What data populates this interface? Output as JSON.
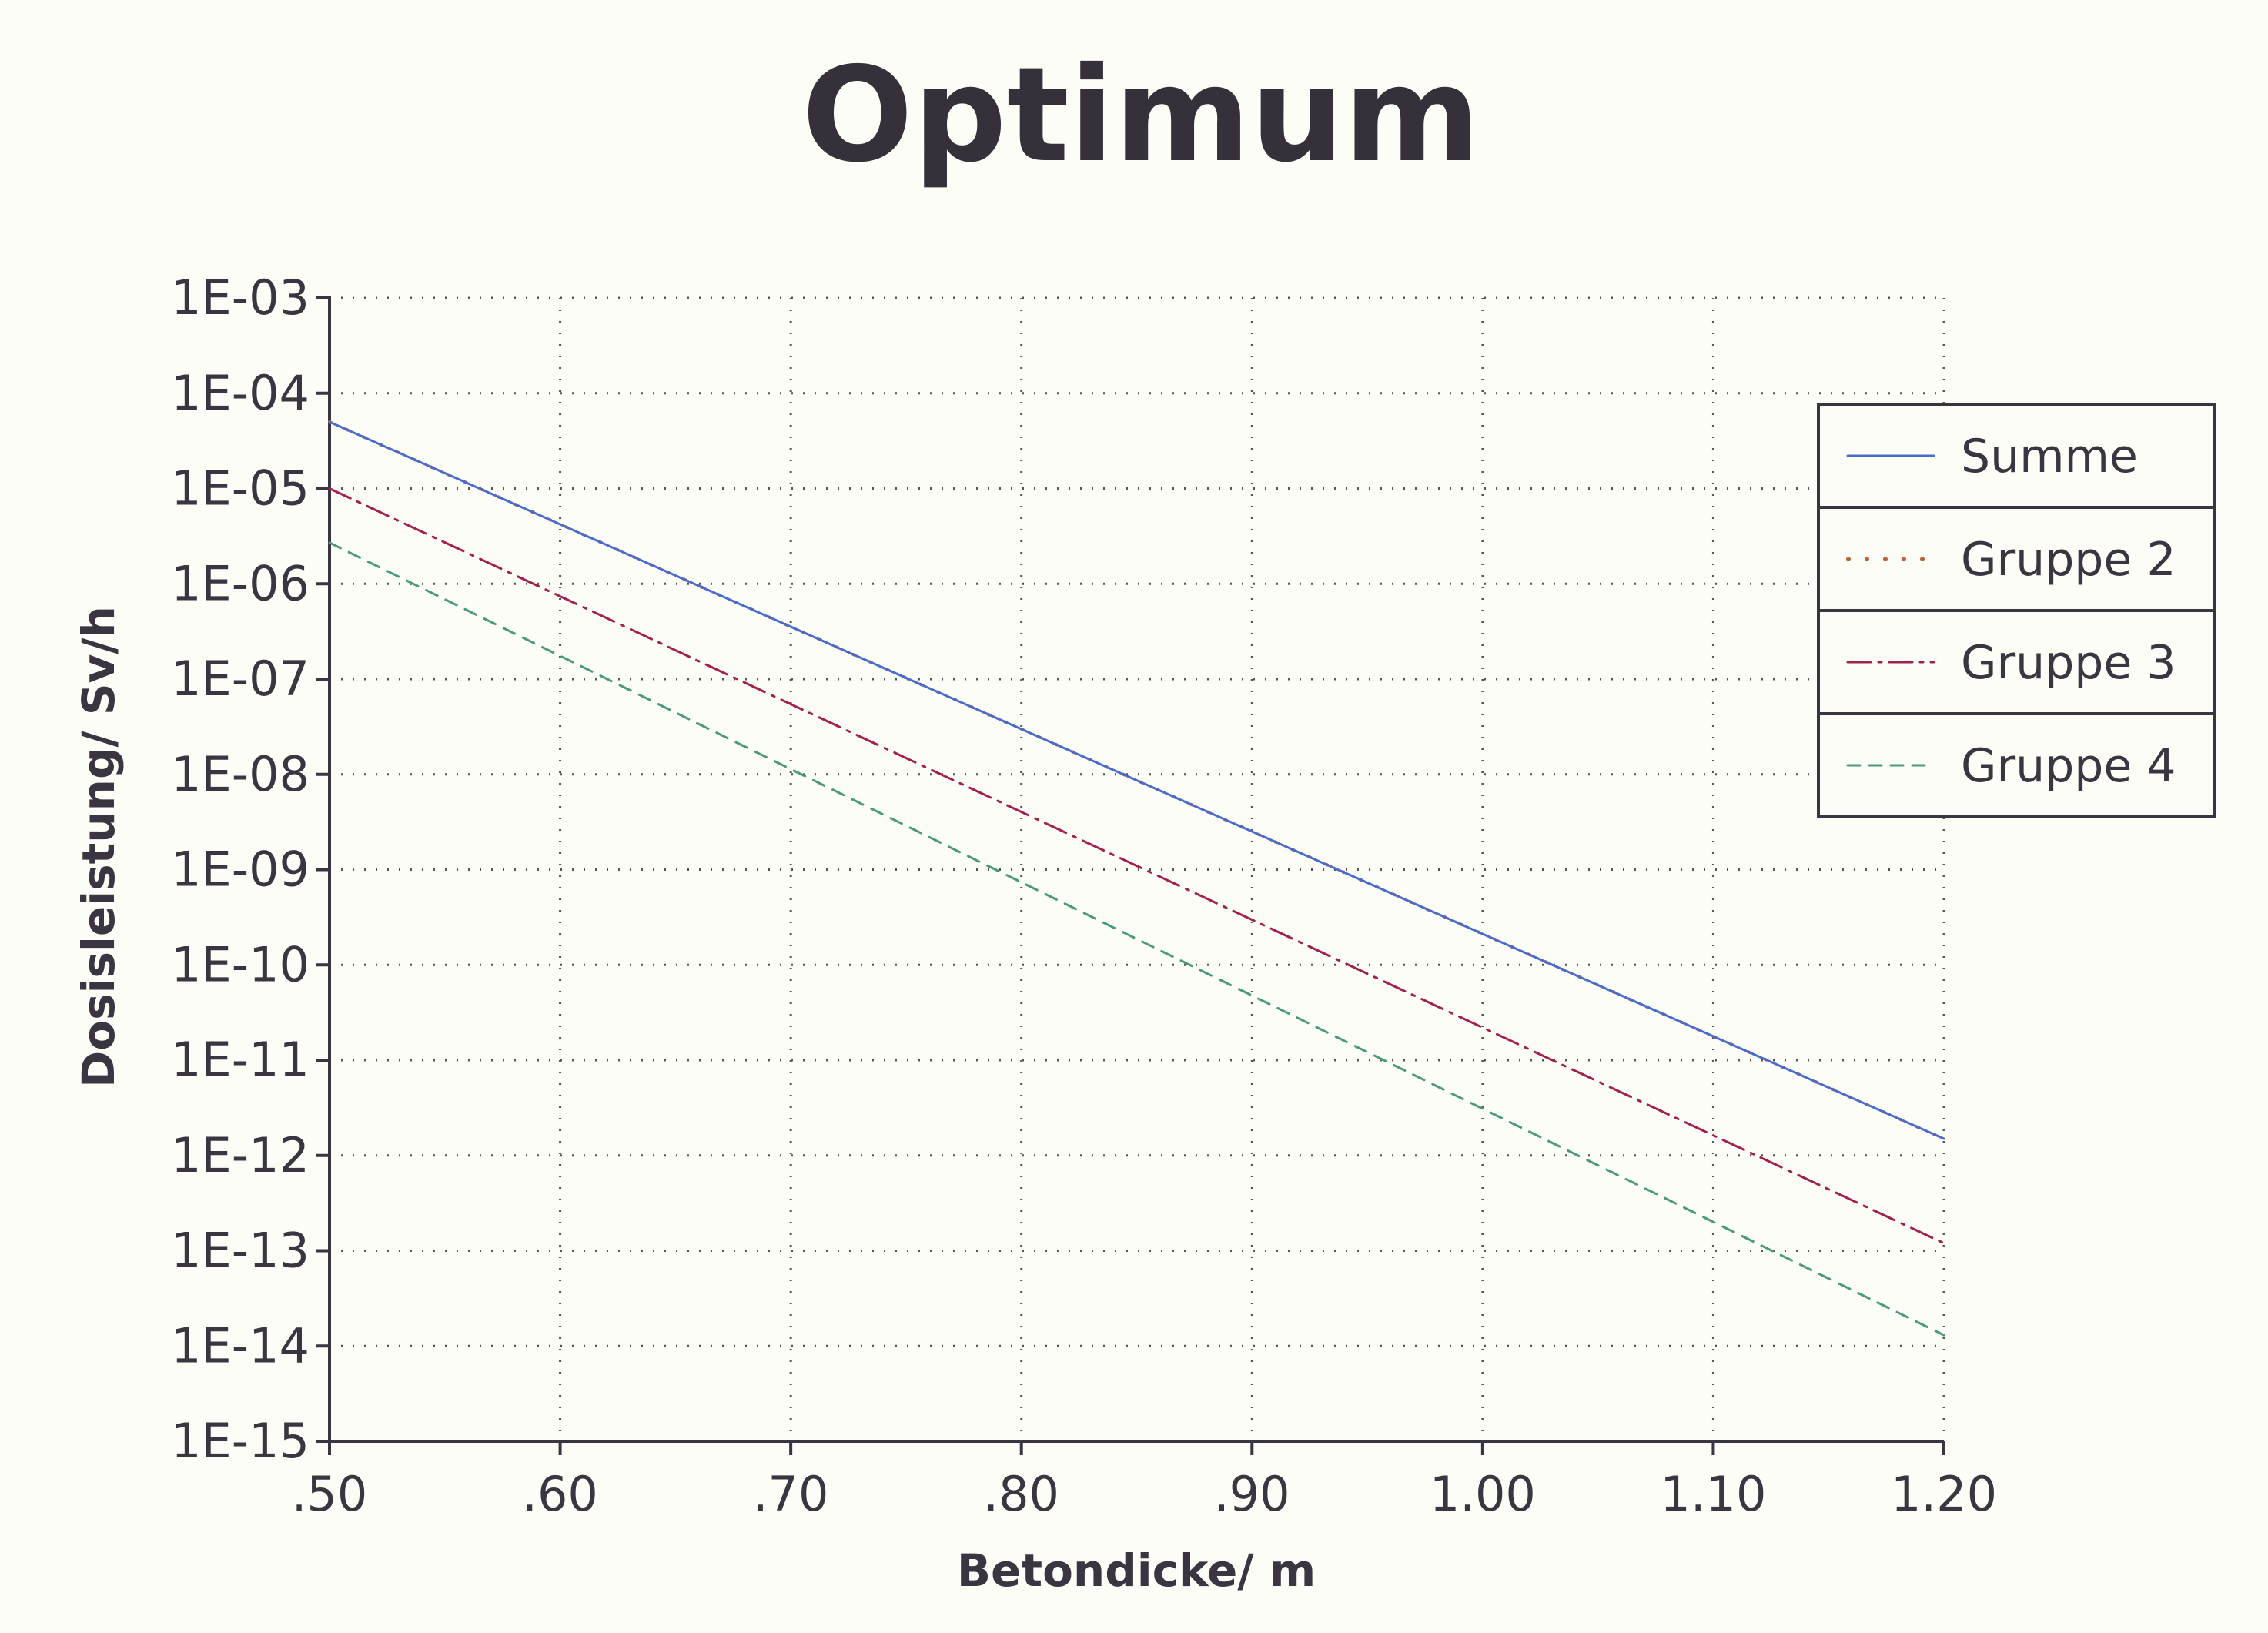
{
  "chart_data": {
    "type": "line",
    "title": "Optimum",
    "xlabel": "Betondicke/ m",
    "ylabel": "Dosisleistung/ Sv/h",
    "x_ticks": [
      ".50",
      ".60",
      ".70",
      ".80",
      ".90",
      "1.00",
      "1.10",
      "1.20"
    ],
    "y_ticks": [
      "1E-03",
      "1E-04",
      "1E-05",
      "1E-06",
      "1E-07",
      "1E-08",
      "1E-09",
      "1E-10",
      "1E-11",
      "1E-12",
      "1E-13",
      "1E-14",
      "1E-15"
    ],
    "xlim": [
      0.5,
      1.2
    ],
    "ylim": [
      1e-15,
      0.001
    ],
    "yscale": "log",
    "grid": true,
    "legend_position": "top-right",
    "series": [
      {
        "name": "Summe",
        "style": "solid",
        "color": "#4a6cc8",
        "x": [
          0.5,
          1.2
        ],
        "y": [
          5e-05,
          1.5e-12
        ]
      },
      {
        "name": "Gruppe 2",
        "style": "dotted",
        "color": "#c0603a",
        "x": [
          0.5,
          1.2
        ],
        "y": [
          5e-05,
          1.5e-12
        ]
      },
      {
        "name": "Gruppe 3",
        "style": "dashdot",
        "color": "#a02050",
        "x": [
          0.5,
          1.2
        ],
        "y": [
          1e-05,
          1.2e-13
        ]
      },
      {
        "name": "Gruppe 4",
        "style": "dashed",
        "color": "#4a9a7a",
        "x": [
          0.5,
          1.2
        ],
        "y": [
          2.7e-06,
          1.3e-14
        ]
      }
    ]
  }
}
